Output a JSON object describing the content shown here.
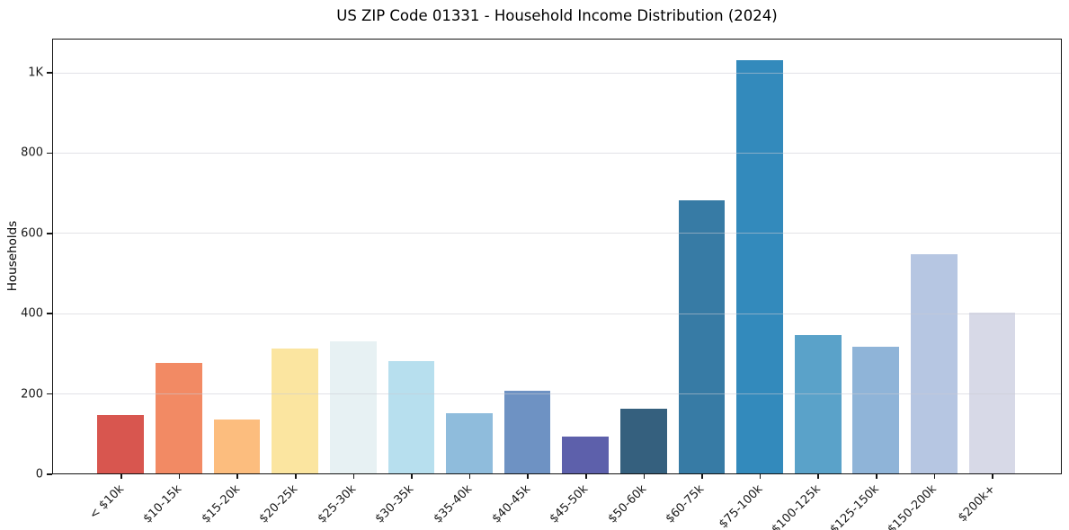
{
  "title": "US ZIP Code 01331 - Household Income Distribution (2024)",
  "chart_data": {
    "type": "bar",
    "title": "US ZIP Code 01331 - Household Income Distribution (2024)",
    "xlabel": "",
    "ylabel": "Households",
    "categories": [
      "< $10k",
      "$10-15k",
      "$15-20k",
      "$20-25k",
      "$25-30k",
      "$30-35k",
      "$35-40k",
      "$40-45k",
      "$45-50k",
      "$50-60k",
      "$60-75k",
      "$75-100k",
      "$100-125k",
      "$125-150k",
      "$150-200k",
      "$200k+"
    ],
    "values": [
      145,
      275,
      135,
      310,
      330,
      280,
      150,
      205,
      92,
      160,
      680,
      1030,
      345,
      315,
      545,
      400
    ],
    "bar_colors": [
      "#d8564f",
      "#f28a64",
      "#fcbd7e",
      "#fbe5a0",
      "#e7f1f3",
      "#b7dfee",
      "#8fbcdc",
      "#6e92c3",
      "#5d60ab",
      "#35607e",
      "#377ba5",
      "#338abc",
      "#5aa2c9",
      "#8fb4d8",
      "#b6c6e2",
      "#d7d9e7"
    ],
    "yticks": [
      {
        "value": 0,
        "label": "0"
      },
      {
        "value": 200,
        "label": "200"
      },
      {
        "value": 400,
        "label": "400"
      },
      {
        "value": 600,
        "label": "600"
      },
      {
        "value": 800,
        "label": "800"
      },
      {
        "value": 1000,
        "label": "1K"
      }
    ],
    "ylim": [
      0,
      1085
    ],
    "grid": "horizontal-only",
    "legend": "none",
    "plot_border_color": "#141414",
    "background_color": "#ffffff"
  }
}
